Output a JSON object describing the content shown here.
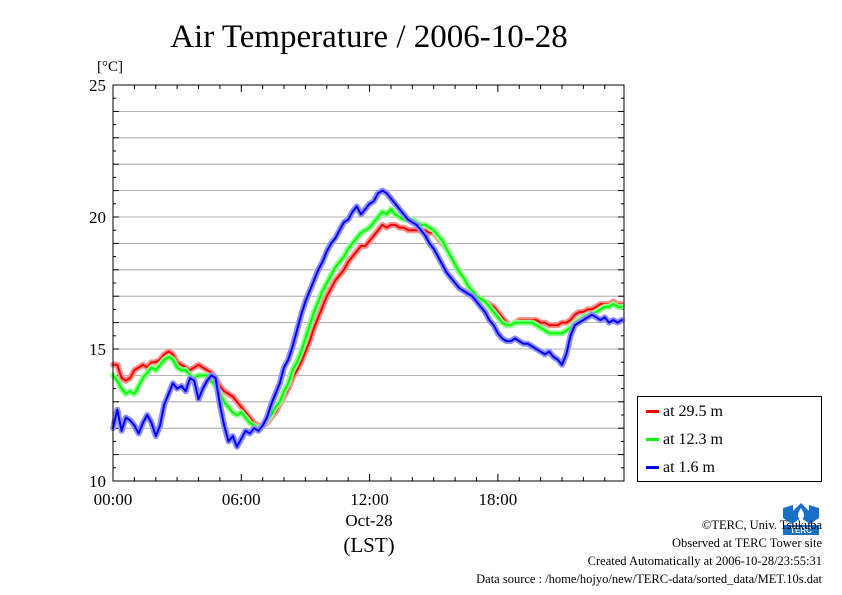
{
  "chart_data": {
    "type": "line",
    "title": "Air Temperature / 2006-10-28",
    "ylabel": "[°C]",
    "xlabel": "(LST)",
    "date_label": "Oct-28",
    "ylim": [
      10,
      25
    ],
    "xlim": [
      0,
      23.9
    ],
    "yticks": [
      "10",
      "15",
      "20",
      "25"
    ],
    "xticks": [
      {
        "hour": 0,
        "label": "00:00"
      },
      {
        "hour": 6,
        "label": "06:00"
      },
      {
        "hour": 12,
        "label": "12:00"
      },
      {
        "hour": 18,
        "label": "18:00"
      }
    ],
    "grid": true,
    "legend_position": "bottom-right outside",
    "series": [
      {
        "name": "at 29.5 m",
        "color": "#ff0000",
        "halo": "#ff9090",
        "x": [
          0,
          0.2,
          0.4,
          0.6,
          0.8,
          1,
          1.2,
          1.4,
          1.6,
          1.8,
          2,
          2.2,
          2.4,
          2.6,
          2.8,
          3,
          3.2,
          3.4,
          3.6,
          3.8,
          4,
          4.2,
          4.4,
          4.6,
          4.8,
          5,
          5.2,
          5.4,
          5.6,
          5.8,
          6,
          6.2,
          6.4,
          6.6,
          6.8,
          7,
          7.2,
          7.4,
          7.6,
          7.8,
          8,
          8.2,
          8.4,
          8.6,
          8.8,
          9,
          9.2,
          9.4,
          9.6,
          9.8,
          10,
          10.2,
          10.4,
          10.6,
          10.8,
          11,
          11.2,
          11.4,
          11.6,
          11.8,
          12,
          12.2,
          12.4,
          12.6,
          12.8,
          13,
          13.2,
          13.4,
          13.6,
          13.8,
          14,
          14.2,
          14.4,
          14.6,
          14.8,
          15,
          15.2,
          15.4,
          15.6,
          15.8,
          16,
          16.2,
          16.4,
          16.6,
          16.8,
          17,
          17.2,
          17.4,
          17.6,
          17.8,
          18,
          18.2,
          18.4,
          18.6,
          18.8,
          19,
          19.2,
          19.4,
          19.6,
          19.8,
          20,
          20.2,
          20.4,
          20.6,
          20.8,
          21,
          21.2,
          21.4,
          21.6,
          21.8,
          22,
          22.2,
          22.4,
          22.6,
          22.8,
          23,
          23.2,
          23.4,
          23.6,
          23.8
        ],
        "y": [
          14.4,
          14.4,
          13.9,
          13.8,
          13.9,
          14.2,
          14.3,
          14.4,
          14.3,
          14.5,
          14.5,
          14.6,
          14.8,
          14.9,
          14.8,
          14.5,
          14.4,
          14.3,
          14.2,
          14.3,
          14.4,
          14.3,
          14.2,
          14.1,
          13.9,
          13.6,
          13.4,
          13.3,
          13.2,
          13,
          12.8,
          12.6,
          12.4,
          12.2,
          12.1,
          12.1,
          12.2,
          12.4,
          12.6,
          12.9,
          13.2,
          13.5,
          13.9,
          14.2,
          14.5,
          14.9,
          15.3,
          15.8,
          16.2,
          16.6,
          17,
          17.3,
          17.6,
          17.8,
          18,
          18.3,
          18.5,
          18.7,
          18.9,
          18.9,
          19.1,
          19.3,
          19.5,
          19.7,
          19.6,
          19.7,
          19.7,
          19.6,
          19.6,
          19.5,
          19.5,
          19.5,
          19.5,
          19.5,
          19.4,
          19.4,
          19.2,
          19,
          18.8,
          18.5,
          18.2,
          17.9,
          17.7,
          17.4,
          17.2,
          17,
          16.9,
          16.8,
          16.7,
          16.6,
          16.4,
          16.2,
          16,
          15.9,
          16,
          16.1,
          16.1,
          16.1,
          16.1,
          16.1,
          16,
          16,
          15.9,
          15.9,
          15.9,
          16,
          16,
          16.1,
          16.3,
          16.4,
          16.4,
          16.5,
          16.5,
          16.6,
          16.7,
          16.7,
          16.7,
          16.8,
          16.7,
          16.7
        ]
      },
      {
        "name": "at 12.3 m",
        "color": "#00ff00",
        "halo": "#90ff90",
        "x": [
          0,
          0.2,
          0.4,
          0.6,
          0.8,
          1,
          1.2,
          1.4,
          1.6,
          1.8,
          2,
          2.2,
          2.4,
          2.6,
          2.8,
          3,
          3.2,
          3.4,
          3.6,
          3.8,
          4,
          4.2,
          4.4,
          4.6,
          4.8,
          5,
          5.2,
          5.4,
          5.6,
          5.8,
          6,
          6.2,
          6.4,
          6.6,
          6.8,
          7,
          7.2,
          7.4,
          7.6,
          7.8,
          8,
          8.2,
          8.4,
          8.6,
          8.8,
          9,
          9.2,
          9.4,
          9.6,
          9.8,
          10,
          10.2,
          10.4,
          10.6,
          10.8,
          11,
          11.2,
          11.4,
          11.6,
          11.8,
          12,
          12.2,
          12.4,
          12.6,
          12.8,
          13,
          13.2,
          13.4,
          13.6,
          13.8,
          14,
          14.2,
          14.4,
          14.6,
          14.8,
          15,
          15.2,
          15.4,
          15.6,
          15.8,
          16,
          16.2,
          16.4,
          16.6,
          16.8,
          17,
          17.2,
          17.4,
          17.6,
          17.8,
          18,
          18.2,
          18.4,
          18.6,
          18.8,
          19,
          19.2,
          19.4,
          19.6,
          19.8,
          20,
          20.2,
          20.4,
          20.6,
          20.8,
          21,
          21.2,
          21.4,
          21.6,
          21.8,
          22,
          22.2,
          22.4,
          22.6,
          22.8,
          23,
          23.2,
          23.4,
          23.6,
          23.8
        ],
        "y": [
          14,
          13.8,
          13.5,
          13.3,
          13.4,
          13.3,
          13.6,
          13.9,
          14.1,
          14.3,
          14.2,
          14.4,
          14.6,
          14.7,
          14.6,
          14.3,
          14.2,
          14.2,
          14,
          13.9,
          14,
          14,
          14,
          13.8,
          13.6,
          13.3,
          13,
          12.8,
          12.6,
          12.5,
          12.6,
          12.4,
          12.2,
          12.1,
          12,
          12.1,
          12.3,
          12.5,
          12.8,
          13,
          13.4,
          13.7,
          14.2,
          14.5,
          14.9,
          15.4,
          15.9,
          16.4,
          16.8,
          17.2,
          17.5,
          17.8,
          18.1,
          18.3,
          18.5,
          18.8,
          19,
          19.2,
          19.4,
          19.5,
          19.6,
          19.8,
          20,
          20.2,
          20.1,
          20.3,
          20.1,
          20,
          19.9,
          19.9,
          19.9,
          19.8,
          19.7,
          19.7,
          19.6,
          19.5,
          19.3,
          19.1,
          18.8,
          18.5,
          18.2,
          17.9,
          17.7,
          17.4,
          17.2,
          17,
          16.9,
          16.8,
          16.6,
          16.4,
          16.2,
          16,
          15.9,
          15.9,
          16,
          16,
          16,
          16,
          16,
          15.9,
          15.8,
          15.7,
          15.6,
          15.6,
          15.6,
          15.6,
          15.7,
          15.8,
          16,
          16.1,
          16.2,
          16.3,
          16.3,
          16.4,
          16.5,
          16.6,
          16.6,
          16.7,
          16.6,
          16.6
        ]
      },
      {
        "name": "at 1.6 m",
        "color": "#0000ff",
        "halo": "#8f8fff",
        "x": [
          0,
          0.2,
          0.4,
          0.6,
          0.8,
          1,
          1.2,
          1.4,
          1.6,
          1.8,
          2,
          2.2,
          2.4,
          2.6,
          2.8,
          3,
          3.2,
          3.4,
          3.6,
          3.8,
          4,
          4.2,
          4.4,
          4.6,
          4.8,
          5,
          5.2,
          5.4,
          5.6,
          5.8,
          6,
          6.2,
          6.4,
          6.6,
          6.8,
          7,
          7.2,
          7.4,
          7.6,
          7.8,
          8,
          8.2,
          8.4,
          8.6,
          8.8,
          9,
          9.2,
          9.4,
          9.6,
          9.8,
          10,
          10.2,
          10.4,
          10.6,
          10.8,
          11,
          11.2,
          11.4,
          11.6,
          11.8,
          12,
          12.2,
          12.4,
          12.6,
          12.8,
          13,
          13.2,
          13.4,
          13.6,
          13.8,
          14,
          14.2,
          14.4,
          14.6,
          14.8,
          15,
          15.2,
          15.4,
          15.6,
          15.8,
          16,
          16.2,
          16.4,
          16.6,
          16.8,
          17,
          17.2,
          17.4,
          17.6,
          17.8,
          18,
          18.2,
          18.4,
          18.6,
          18.8,
          19,
          19.2,
          19.4,
          19.6,
          19.8,
          20,
          20.2,
          20.4,
          20.6,
          20.8,
          21,
          21.2,
          21.4,
          21.6,
          21.8,
          22,
          22.2,
          22.4,
          22.6,
          22.8,
          23,
          23.2,
          23.4,
          23.6,
          23.8
        ],
        "y": [
          12,
          12.7,
          11.9,
          12.4,
          12.3,
          12.1,
          11.8,
          12.2,
          12.5,
          12.2,
          11.7,
          12.1,
          12.9,
          13.3,
          13.7,
          13.5,
          13.6,
          13.4,
          13.9,
          13.8,
          13.1,
          13.5,
          13.8,
          14,
          13.9,
          12.9,
          12.1,
          11.5,
          11.7,
          11.3,
          11.6,
          11.9,
          11.8,
          12,
          11.9,
          12.1,
          12.4,
          12.9,
          13.3,
          13.7,
          14.3,
          14.6,
          15.1,
          15.7,
          16.3,
          16.8,
          17.2,
          17.6,
          18,
          18.3,
          18.7,
          19,
          19.2,
          19.5,
          19.8,
          19.9,
          20.2,
          20.4,
          20.1,
          20.3,
          20.5,
          20.6,
          20.9,
          21,
          20.9,
          20.7,
          20.5,
          20.3,
          20.1,
          19.9,
          19.8,
          19.7,
          19.5,
          19.3,
          19,
          18.8,
          18.5,
          18.2,
          17.9,
          17.7,
          17.5,
          17.3,
          17.2,
          17.1,
          17,
          16.8,
          16.6,
          16.4,
          16.1,
          15.9,
          15.6,
          15.4,
          15.3,
          15.3,
          15.4,
          15.3,
          15.2,
          15.2,
          15.1,
          15,
          14.9,
          14.8,
          14.9,
          14.7,
          14.6,
          14.4,
          14.8,
          15.5,
          15.9,
          16,
          16.1,
          16.2,
          16.3,
          16.2,
          16.1,
          16.2,
          16,
          16.1,
          16,
          16.1
        ]
      }
    ]
  },
  "footer": {
    "copyright": "©TERC, Univ. Tsukuba",
    "observed": "Observed at TERC Tower site",
    "created": "Created Automatically at 2006-10-28/23:55:31",
    "source": "Data source : /home/hojyo/new/TERC-data/sorted_data/MET.10s.dat",
    "logo_text": "TERC"
  },
  "colors": {
    "grid": "#999999",
    "axis": "#000000"
  }
}
